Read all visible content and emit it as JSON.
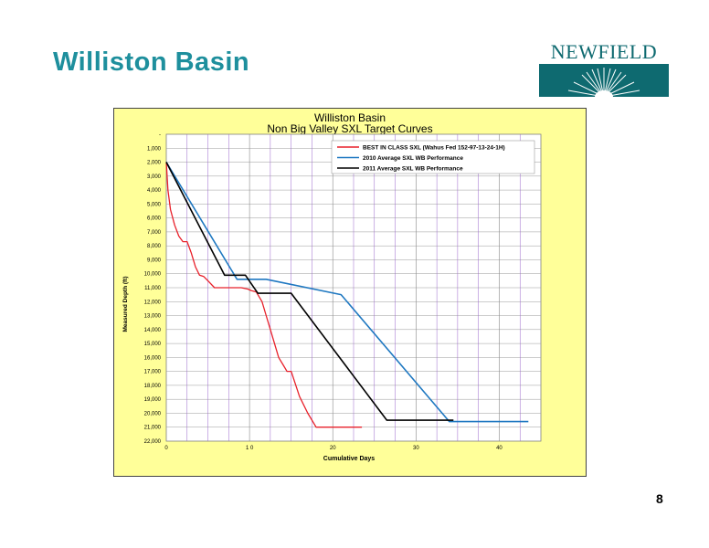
{
  "slide": {
    "title": "Williston Basin",
    "page_number": "8",
    "logo_text": "NEWFIELD"
  },
  "colors": {
    "title": "#1e8f9d",
    "logo": "#0e6a70",
    "chart_background": "#ffff99",
    "plot_background": "#ffffff"
  },
  "chart_data": {
    "type": "line",
    "title": "Williston Basin",
    "subtitle": "Non Big Valley SXL Target Curves",
    "xlabel": "Cumulative Days",
    "ylabel": "Measured Depth (ft)",
    "xlim": [
      0,
      45
    ],
    "ylim": [
      22000,
      0
    ],
    "y_inverted": true,
    "x_ticks": [
      0,
      10,
      20,
      30,
      40
    ],
    "x_tick_labels": [
      "0",
      "1 0",
      "20",
      "30",
      "40"
    ],
    "y_ticks": [
      0,
      1000,
      2000,
      3000,
      4000,
      5000,
      6000,
      7000,
      8000,
      9000,
      10000,
      11000,
      12000,
      13000,
      14000,
      15000,
      16000,
      17000,
      18000,
      19000,
      20000,
      21000,
      22000
    ],
    "y_tick_labels": [
      "-",
      "1,000",
      "2,000",
      "3,000",
      "4,000",
      "5,000",
      "6,000",
      "7,000",
      "8,000",
      "9,000",
      "10,000",
      "11,000",
      "12,000",
      "13,000",
      "14,000",
      "15,000",
      "16,000",
      "17,000",
      "18,000",
      "19,000",
      "20,000",
      "21,000",
      "22,000"
    ],
    "grid": {
      "horizontal": true,
      "vertical_minor_every": 2.5
    },
    "legend_position": "top-right",
    "series": [
      {
        "name": "BEST IN CLASS SXL (Wahus Fed 152-97-13-24-1H)",
        "color": "#e8202a",
        "x": [
          0,
          0.2,
          0.5,
          1.0,
          1.5,
          2.0,
          2.5,
          3.0,
          3.5,
          4.0,
          4.5,
          5.0,
          5.8,
          7.0,
          8.5,
          9.0,
          9.8,
          10.2,
          10.8,
          11.5,
          12.0,
          12.5,
          13.5,
          14.0,
          14.5,
          15.0,
          16.0,
          17.0,
          18.0,
          21.0,
          23.5
        ],
        "y": [
          2000,
          4000,
          5400,
          6500,
          7300,
          7700,
          7700,
          8500,
          9500,
          10100,
          10200,
          10500,
          11000,
          11000,
          11000,
          11000,
          11100,
          11200,
          11300,
          12000,
          13000,
          14000,
          16000,
          16500,
          17000,
          17000,
          18800,
          20000,
          21000,
          21000,
          21000
        ]
      },
      {
        "name": "2010 Average SXL WB Performance",
        "color": "#1f78c1",
        "x": [
          0,
          8.5,
          12.0,
          21.0,
          34.0,
          43.5
        ],
        "y": [
          2000,
          10400,
          10400,
          11500,
          20600,
          20600
        ]
      },
      {
        "name": "2011 Average SXL WB Performance",
        "color": "#000000",
        "x": [
          0,
          7.0,
          9.5,
          11.0,
          15.0,
          26.5,
          34.5
        ],
        "y": [
          2000,
          10100,
          10100,
          11400,
          11400,
          20500,
          20500
        ]
      }
    ]
  }
}
